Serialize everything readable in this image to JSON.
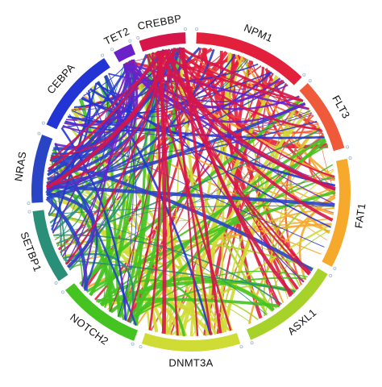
{
  "diagram": {
    "type": "chord",
    "genes": [
      {
        "name": "NPM1",
        "color": "#e3203c"
      },
      {
        "name": "FLT3",
        "color": "#ef5a3a"
      },
      {
        "name": "FAT1",
        "color": "#f6a92b"
      },
      {
        "name": "ASXL1",
        "color": "#a7d22a"
      },
      {
        "name": "DNMT3A",
        "color": "#cfdc35"
      },
      {
        "name": "NOTCH2",
        "color": "#44c321"
      },
      {
        "name": "SETBP1",
        "color": "#2a8f78"
      },
      {
        "name": "NRAS",
        "color": "#2a44c6"
      },
      {
        "name": "CEBPA",
        "color": "#2334d4"
      },
      {
        "name": "TET2",
        "color": "#6a22c8"
      },
      {
        "name": "CREBBP",
        "color": "#d6154a"
      }
    ]
  }
}
